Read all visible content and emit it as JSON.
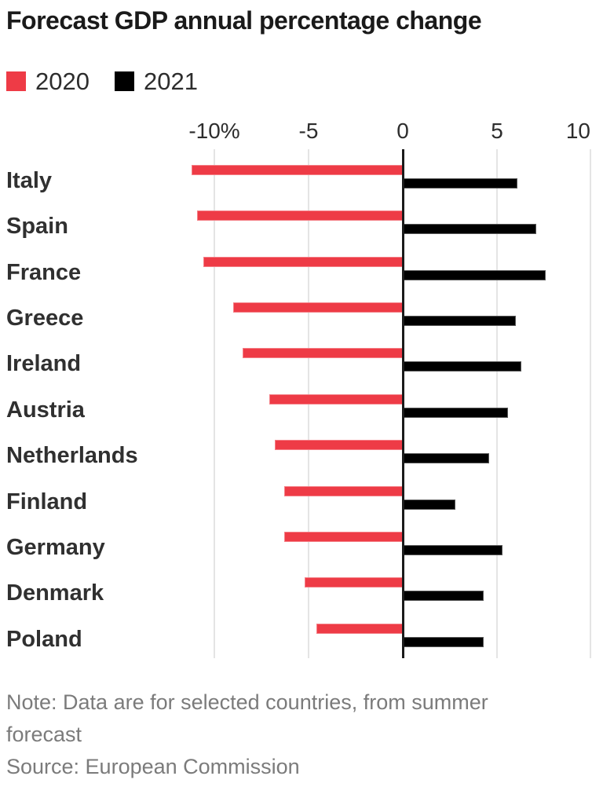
{
  "title": "Forecast GDP annual percentage change",
  "legend": {
    "items": [
      {
        "label": "2020",
        "color": "#ee3b46"
      },
      {
        "label": "2021",
        "color": "#000000"
      }
    ]
  },
  "chart_data": {
    "type": "bar",
    "orientation": "horizontal",
    "title": "Forecast GDP annual percentage change",
    "categories": [
      "Italy",
      "Spain",
      "France",
      "Greece",
      "Ireland",
      "Austria",
      "Netherlands",
      "Finland",
      "Germany",
      "Denmark",
      "Poland"
    ],
    "series": [
      {
        "name": "2020",
        "color": "#ee3b46",
        "values": [
          -11.2,
          -10.9,
          -10.6,
          -9.0,
          -8.5,
          -7.1,
          -6.8,
          -6.3,
          -6.3,
          -5.2,
          -4.6
        ]
      },
      {
        "name": "2021",
        "color": "#000000",
        "values": [
          6.1,
          7.1,
          7.6,
          6.0,
          6.3,
          5.6,
          4.6,
          2.8,
          5.3,
          4.3,
          4.3
        ]
      }
    ],
    "xlim": [
      -11.5,
      10
    ],
    "x_ticks": [
      {
        "value": -10,
        "label": "-10%"
      },
      {
        "value": -5,
        "label": "-5"
      },
      {
        "value": 0,
        "label": "0"
      },
      {
        "value": 5,
        "label": "5"
      },
      {
        "value": 10,
        "label": "10"
      }
    ],
    "grid": true,
    "zero_axis_color": "#1b1b1b",
    "gridline_color": "#e4e4e4",
    "legend_position": "top-left",
    "unit": "percent"
  },
  "footer": {
    "note": "Note: Data are for selected countries, from summer forecast",
    "source": "Source: European Commission"
  }
}
